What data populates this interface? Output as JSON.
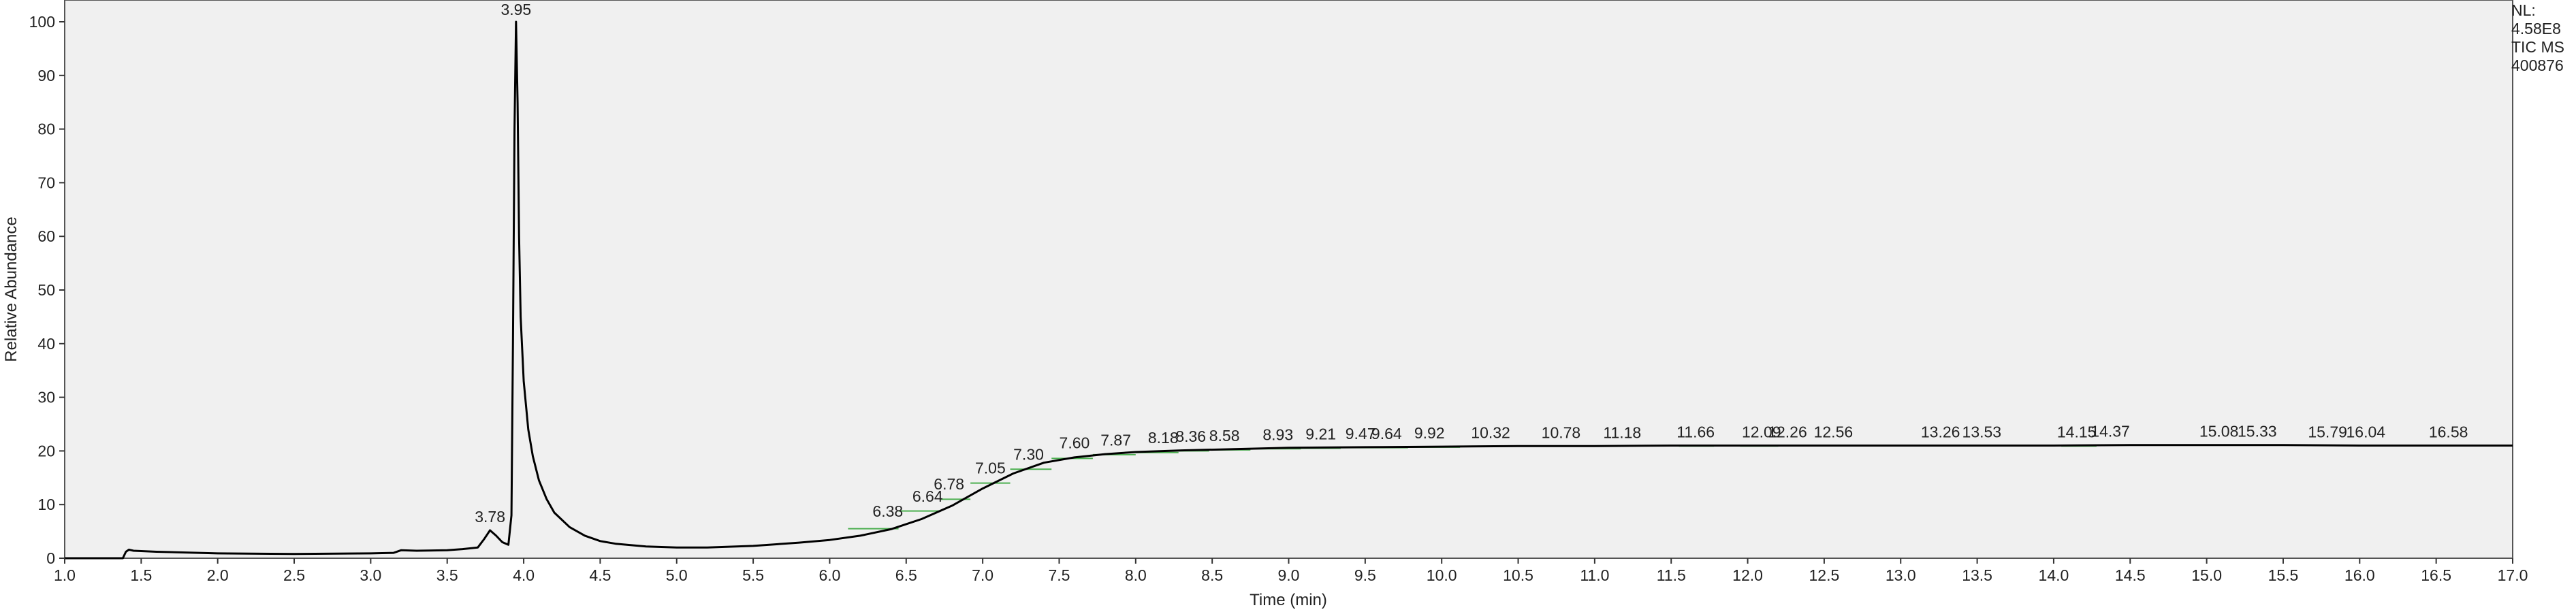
{
  "normalization": {
    "nl_label": "NL:",
    "nl_value": "4.58E8",
    "trace_label": "TIC  MS",
    "file_id": "400876"
  },
  "chart_data": {
    "type": "line",
    "title": "",
    "xlabel": "Time (min)",
    "ylabel": "Relative Abundance",
    "xlim": [
      1.0,
      17.0
    ],
    "ylim": [
      0,
      100
    ],
    "x_ticks": [
      "1.0",
      "1.5",
      "2.0",
      "2.5",
      "3.0",
      "3.5",
      "4.0",
      "4.5",
      "5.0",
      "5.5",
      "6.0",
      "6.5",
      "7.0",
      "7.5",
      "8.0",
      "8.5",
      "9.0",
      "9.5",
      "10.0",
      "10.5",
      "11.0",
      "11.5",
      "12.0",
      "12.5",
      "13.0",
      "13.5",
      "14.0",
      "14.5",
      "15.0",
      "15.5",
      "16.0",
      "16.5",
      "17.0"
    ],
    "y_ticks": [
      "0",
      "10",
      "20",
      "30",
      "40",
      "50",
      "60",
      "70",
      "80",
      "90",
      "100"
    ],
    "series": [
      {
        "color": "#000000",
        "x": [
          1.0,
          1.38,
          1.4,
          1.42,
          1.45,
          1.6,
          2.0,
          2.5,
          3.0,
          3.15,
          3.2,
          3.3,
          3.5,
          3.6,
          3.7,
          3.74,
          3.78,
          3.82,
          3.86,
          3.9,
          3.92,
          3.93,
          3.94,
          3.95,
          3.96,
          3.97,
          3.98,
          4.0,
          4.03,
          4.06,
          4.1,
          4.15,
          4.2,
          4.3,
          4.4,
          4.5,
          4.6,
          4.8,
          5.0,
          5.2,
          5.5,
          5.8,
          6.0,
          6.2,
          6.4,
          6.6,
          6.8,
          7.0,
          7.2,
          7.4,
          7.6,
          7.8,
          8.0,
          8.3,
          8.6,
          9.0,
          9.5,
          10.0,
          10.5,
          11.0,
          11.5,
          12.0,
          12.5,
          13.0,
          13.5,
          14.0,
          14.5,
          15.0,
          15.5,
          16.0,
          16.5,
          17.0
        ],
        "y": [
          0.0,
          0.0,
          1.2,
          1.6,
          1.4,
          1.2,
          0.9,
          0.8,
          0.9,
          1.0,
          1.5,
          1.4,
          1.5,
          1.7,
          2.0,
          3.5,
          5.2,
          4.2,
          3.0,
          2.5,
          8.0,
          40.0,
          80.0,
          100.0,
          85.0,
          60.0,
          45.0,
          33.0,
          24.0,
          19.0,
          14.5,
          11.0,
          8.5,
          5.8,
          4.2,
          3.2,
          2.7,
          2.2,
          2.0,
          2.0,
          2.3,
          2.9,
          3.4,
          4.2,
          5.4,
          7.3,
          9.8,
          13.0,
          15.8,
          17.8,
          18.8,
          19.4,
          19.8,
          20.1,
          20.3,
          20.6,
          20.7,
          20.8,
          20.9,
          20.9,
          21.0,
          21.0,
          21.0,
          21.0,
          21.0,
          21.0,
          21.1,
          21.1,
          21.1,
          21.0,
          21.0,
          21.0
        ]
      }
    ],
    "peak_labels": [
      {
        "text": "3.78",
        "x": 3.78,
        "y": 5.2
      },
      {
        "text": "3.95",
        "x": 3.95,
        "y": 100.0
      },
      {
        "text": "6.38",
        "x": 6.38,
        "y": 6.2
      },
      {
        "text": "6.64",
        "x": 6.64,
        "y": 9.0
      },
      {
        "text": "6.78",
        "x": 6.78,
        "y": 11.3
      },
      {
        "text": "7.05",
        "x": 7.05,
        "y": 14.3
      },
      {
        "text": "7.30",
        "x": 7.3,
        "y": 16.8
      },
      {
        "text": "7.60",
        "x": 7.6,
        "y": 19.0
      },
      {
        "text": "7.87",
        "x": 7.87,
        "y": 19.5
      },
      {
        "text": "8.18",
        "x": 8.18,
        "y": 19.9
      },
      {
        "text": "8.36",
        "x": 8.36,
        "y": 20.2
      },
      {
        "text": "8.58",
        "x": 8.58,
        "y": 20.3
      },
      {
        "text": "8.93",
        "x": 8.93,
        "y": 20.5
      },
      {
        "text": "9.21",
        "x": 9.21,
        "y": 20.6
      },
      {
        "text": "9.47",
        "x": 9.47,
        "y": 20.7
      },
      {
        "text": "9.64",
        "x": 9.64,
        "y": 20.7
      },
      {
        "text": "9.92",
        "x": 9.92,
        "y": 20.8
      },
      {
        "text": "10.32",
        "x": 10.32,
        "y": 20.9
      },
      {
        "text": "10.78",
        "x": 10.78,
        "y": 20.9
      },
      {
        "text": "11.18",
        "x": 11.18,
        "y": 20.9
      },
      {
        "text": "11.66",
        "x": 11.66,
        "y": 21.0
      },
      {
        "text": "12.09",
        "x": 12.09,
        "y": 21.0
      },
      {
        "text": "12.26",
        "x": 12.26,
        "y": 21.0
      },
      {
        "text": "12.56",
        "x": 12.56,
        "y": 21.0
      },
      {
        "text": "13.26",
        "x": 13.26,
        "y": 21.0
      },
      {
        "text": "13.53",
        "x": 13.53,
        "y": 21.0
      },
      {
        "text": "14.15",
        "x": 14.15,
        "y": 21.0
      },
      {
        "text": "14.37",
        "x": 14.37,
        "y": 21.1
      },
      {
        "text": "15.08",
        "x": 15.08,
        "y": 21.1
      },
      {
        "text": "15.33",
        "x": 15.33,
        "y": 21.1
      },
      {
        "text": "15.79",
        "x": 15.79,
        "y": 21.0
      },
      {
        "text": "16.04",
        "x": 16.04,
        "y": 21.0
      },
      {
        "text": "16.58",
        "x": 16.58,
        "y": 21.0
      }
    ],
    "baseline_segments": [
      {
        "x_start": 6.12,
        "x_end": 6.45,
        "y": 5.5
      },
      {
        "x_start": 6.45,
        "x_end": 6.72,
        "y": 8.8
      },
      {
        "x_start": 6.72,
        "x_end": 6.92,
        "y": 11.0
      },
      {
        "x_start": 6.92,
        "x_end": 7.18,
        "y": 14.0
      },
      {
        "x_start": 7.18,
        "x_end": 7.45,
        "y": 16.6
      },
      {
        "x_start": 7.45,
        "x_end": 7.72,
        "y": 18.6
      },
      {
        "x_start": 7.72,
        "x_end": 8.0,
        "y": 19.3
      },
      {
        "x_start": 8.0,
        "x_end": 8.28,
        "y": 19.7
      },
      {
        "x_start": 8.28,
        "x_end": 8.48,
        "y": 20.0
      },
      {
        "x_start": 8.48,
        "x_end": 8.75,
        "y": 20.2
      },
      {
        "x_start": 8.75,
        "x_end": 9.08,
        "y": 20.4
      },
      {
        "x_start": 9.08,
        "x_end": 9.34,
        "y": 20.5
      },
      {
        "x_start": 9.34,
        "x_end": 9.56,
        "y": 20.6
      },
      {
        "x_start": 9.56,
        "x_end": 9.78,
        "y": 20.6
      },
      {
        "x_start": 9.78,
        "x_end": 10.12,
        "y": 20.7
      },
      {
        "x_start": 11.55,
        "x_end": 11.78,
        "y": 20.9
      },
      {
        "x_start": 11.95,
        "x_end": 12.2,
        "y": 20.9
      },
      {
        "x_start": 14.05,
        "x_end": 14.28,
        "y": 20.9
      }
    ],
    "grid": false,
    "colors": {
      "trace": "#000000",
      "baseline": "#4caf50",
      "plot_background": "#f0f0f0"
    }
  }
}
